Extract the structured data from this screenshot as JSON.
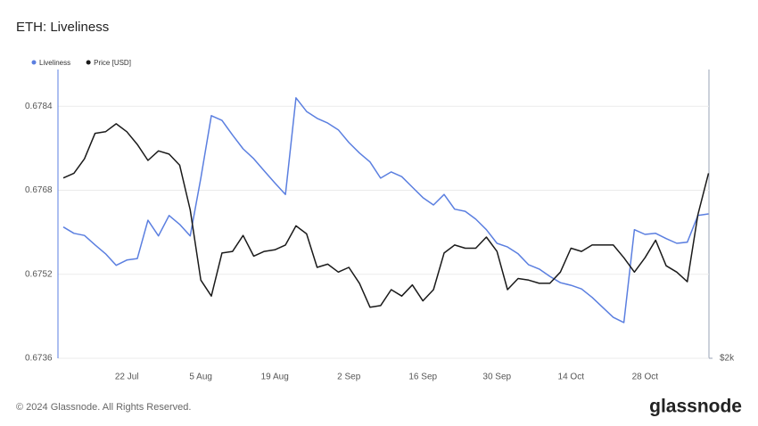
{
  "chart_data": {
    "type": "line",
    "title": "ETH: Liveliness",
    "footer": "© 2024 Glassnode. All Rights Reserved.",
    "brand": "glassnode",
    "categories": [
      null,
      null,
      null,
      null,
      null,
      null,
      "22 Jul",
      null,
      null,
      null,
      null,
      null,
      null,
      "5 Aug",
      null,
      null,
      null,
      null,
      null,
      null,
      "19 Aug",
      null,
      null,
      null,
      null,
      null,
      null,
      "2 Sep",
      null,
      null,
      null,
      null,
      null,
      null,
      "16 Sep",
      null,
      null,
      null,
      null,
      null,
      null,
      "30 Sep",
      null,
      null,
      null,
      null,
      null,
      null,
      "14 Oct",
      null,
      null,
      null,
      null,
      null,
      null,
      "28 Oct",
      null,
      null,
      null,
      null,
      null,
      null
    ],
    "ylim": [
      0.6736,
      0.6791
    ],
    "yticks": [
      0.6736,
      0.6752,
      0.6768,
      0.6784
    ],
    "y2lim": [
      2000,
      3810
    ],
    "y2ticks": [
      {
        "value": 2000,
        "label": "$2k"
      }
    ],
    "grid": true,
    "legend": "top-left",
    "series": [
      {
        "name": "Liveliness",
        "color": "#5b7fe0",
        "values": [
          0.6761,
          0.67598,
          0.67594,
          0.67576,
          0.67559,
          0.67537,
          0.67547,
          0.6755,
          0.67623,
          0.67593,
          0.67632,
          0.67615,
          0.67593,
          0.67703,
          0.67822,
          0.67813,
          0.67785,
          0.67759,
          0.6774,
          0.67717,
          0.67694,
          0.67672,
          0.67856,
          0.6783,
          0.67817,
          0.67808,
          0.67795,
          0.67771,
          0.67751,
          0.67734,
          0.67703,
          0.67715,
          0.67706,
          0.67686,
          0.67666,
          0.67652,
          0.67672,
          0.67644,
          0.6764,
          0.67625,
          0.67605,
          0.67579,
          0.67572,
          0.67559,
          0.67538,
          0.6753,
          0.67516,
          0.67504,
          0.67499,
          0.67492,
          0.67476,
          0.67457,
          0.67438,
          0.67428,
          0.67605,
          0.67596,
          0.67598,
          0.67588,
          0.67579,
          0.67581,
          0.67632,
          0.67635
        ]
      },
      {
        "name": "Price [USD]",
        "color": "#1a1a1a",
        "axis": "y2",
        "values": [
          3130,
          3160,
          3250,
          3410,
          3420,
          3470,
          3420,
          3340,
          3240,
          3300,
          3280,
          3210,
          2930,
          2490,
          2390,
          2660,
          2670,
          2770,
          2640,
          2670,
          2680,
          2710,
          2830,
          2780,
          2570,
          2590,
          2540,
          2570,
          2470,
          2320,
          2330,
          2430,
          2390,
          2460,
          2360,
          2430,
          2660,
          2710,
          2690,
          2690,
          2760,
          2670,
          2430,
          2500,
          2490,
          2470,
          2470,
          2540,
          2690,
          2670,
          2710,
          2710,
          2710,
          2630,
          2540,
          2630,
          2740,
          2580,
          2540,
          2480,
          2900,
          3160
        ]
      }
    ]
  }
}
